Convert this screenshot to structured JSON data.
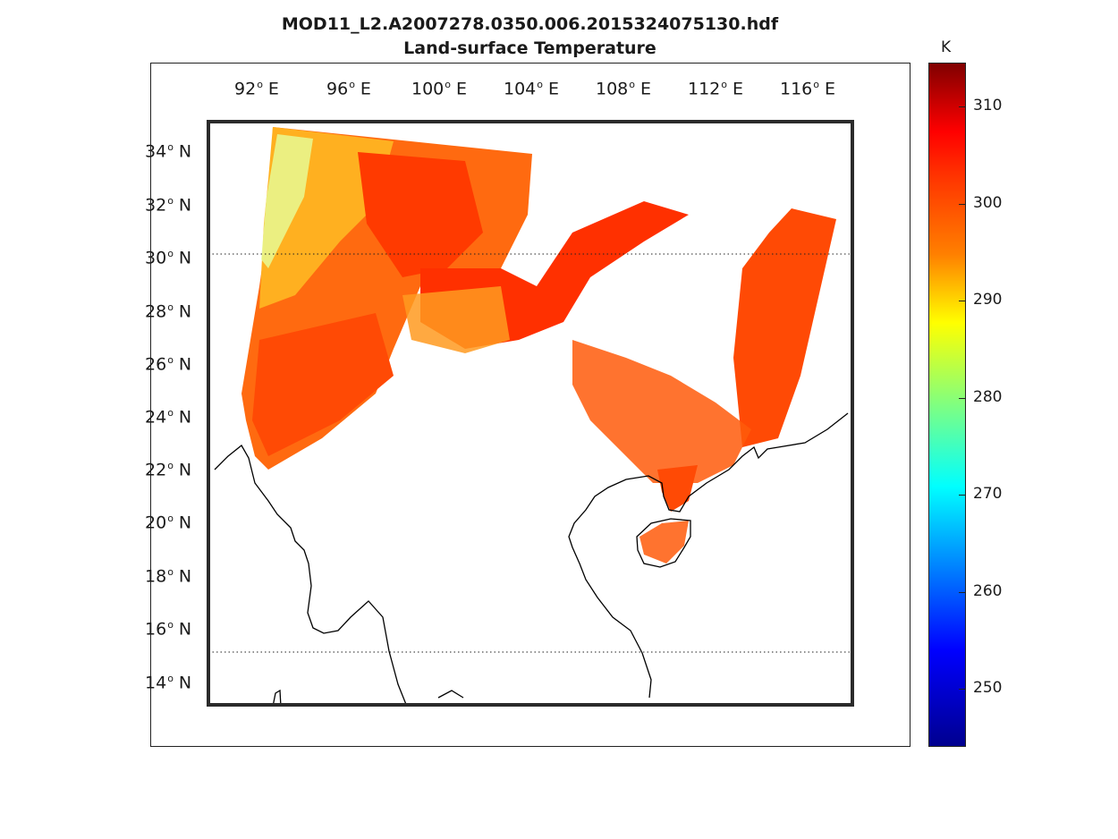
{
  "title": {
    "line1": "MOD11_L2.A2007278.0350.006.2015324075130.hdf",
    "line2": "Land-surface Temperature"
  },
  "map": {
    "lon_labels": [
      "92",
      "96",
      "100",
      "104",
      "108",
      "112",
      "116"
    ],
    "lon_suffix": "E",
    "lat_labels": [
      "34",
      "32",
      "30",
      "28",
      "26",
      "24",
      "22",
      "20",
      "18",
      "16",
      "14"
    ],
    "lat_suffix": "N",
    "lon_range": [
      88.8,
      117.2
    ],
    "lat_range": [
      13.3,
      35.2
    ],
    "parallels_dotted": [
      30.2,
      15.2
    ]
  },
  "colorbar": {
    "unit": "K",
    "range": [
      244,
      314.5
    ],
    "ticks": [
      "310",
      "300",
      "290",
      "280",
      "270",
      "260",
      "250"
    ],
    "colormap": "jet"
  },
  "colors": {
    "hot": "#ff2a00",
    "warm": "#ff6a10",
    "mild": "#ffb020",
    "cool": "#fff080",
    "cold": "#b0ffd0",
    "coast": "#000000"
  }
}
